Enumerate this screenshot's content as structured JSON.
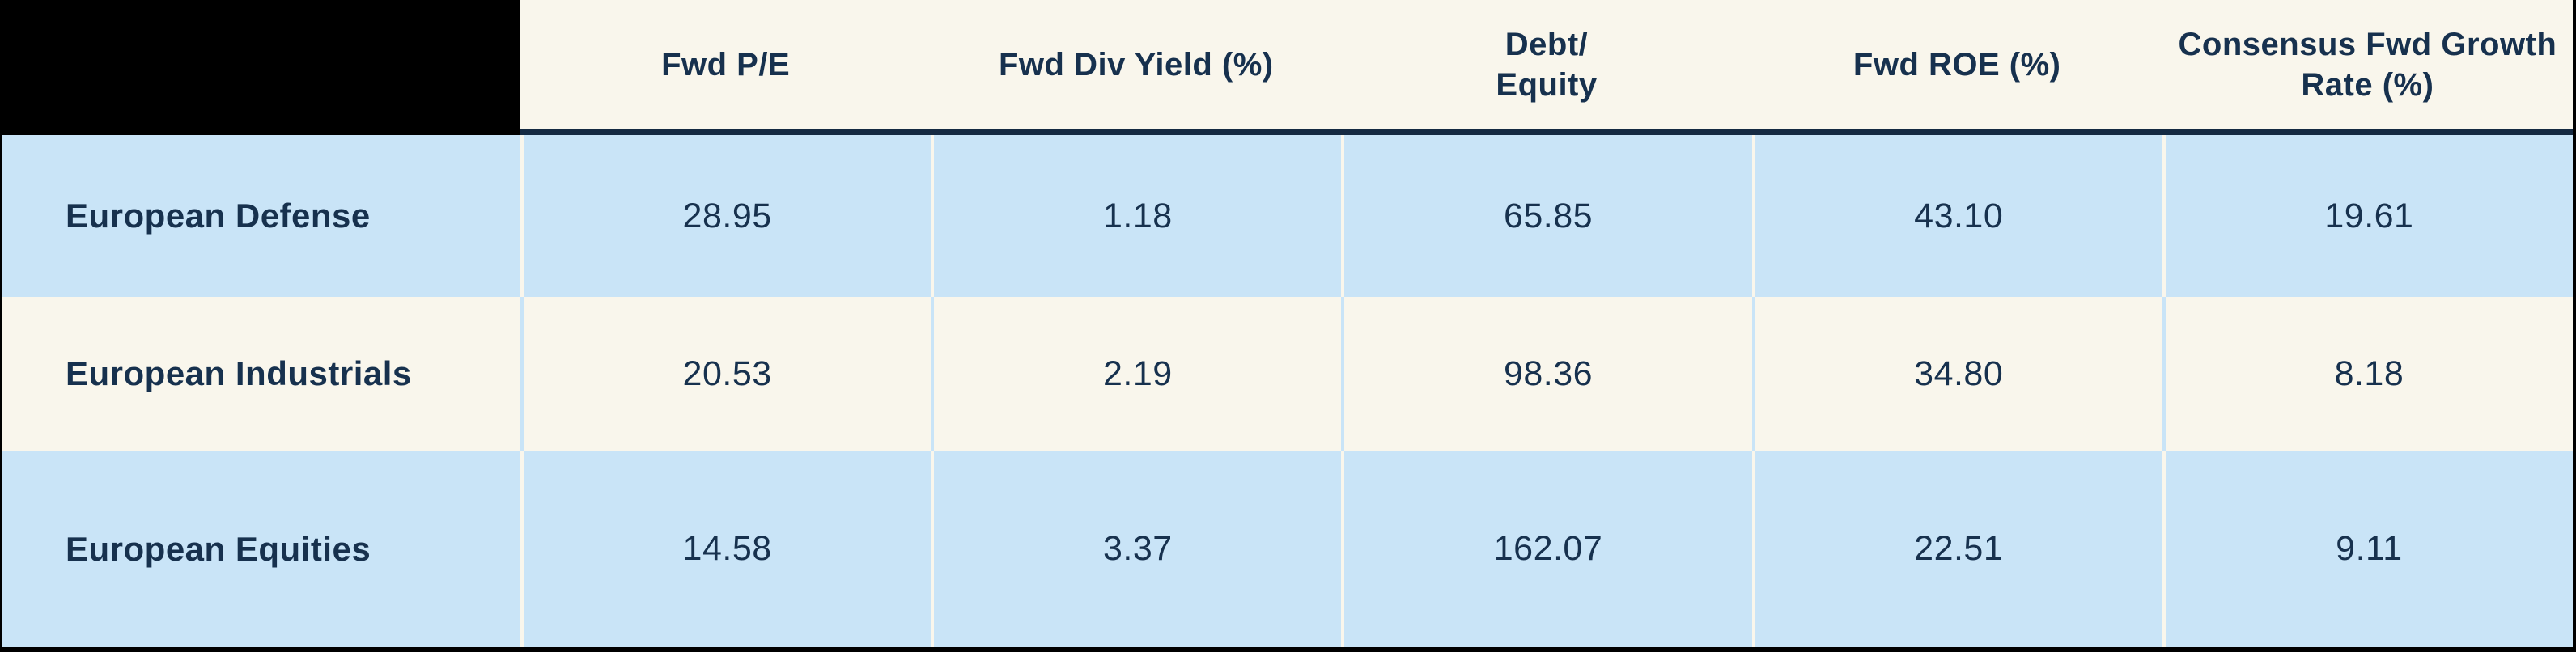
{
  "table": {
    "columns": [
      "Fwd P/E",
      "Fwd Div Yield (%)",
      "Debt/\nEquity",
      "Fwd ROE (%)",
      "Consensus Fwd Growth\nRate (%)"
    ],
    "rows": [
      {
        "label": "European Defense",
        "values": [
          "28.95",
          "1.18",
          "65.85",
          "43.10",
          "19.61"
        ]
      },
      {
        "label": "European Industrials",
        "values": [
          "20.53",
          "2.19",
          "98.36",
          "34.80",
          "8.18"
        ]
      },
      {
        "label": "European Equities",
        "values": [
          "14.58",
          "3.37",
          "162.07",
          "22.51",
          "9.11"
        ]
      }
    ]
  },
  "colors": {
    "row_blue": "#C9E4F7",
    "cream": "#F9F6EC",
    "text_navy": "#17314E",
    "header_rule_navy": "#152A42",
    "border_black": "#000000"
  },
  "chart_data": {
    "type": "table",
    "columns": [
      "Fwd P/E",
      "Fwd Div Yield (%)",
      "Debt/Equity",
      "Fwd ROE (%)",
      "Consensus Fwd Growth Rate (%)"
    ],
    "rows": [
      {
        "name": "European Defense",
        "values": [
          28.95,
          1.18,
          65.85,
          43.1,
          19.61
        ]
      },
      {
        "name": "European Industrials",
        "values": [
          20.53,
          2.19,
          98.36,
          34.8,
          8.18
        ]
      },
      {
        "name": "European Equities",
        "values": [
          14.58,
          3.37,
          162.07,
          22.51,
          9.11
        ]
      }
    ]
  }
}
